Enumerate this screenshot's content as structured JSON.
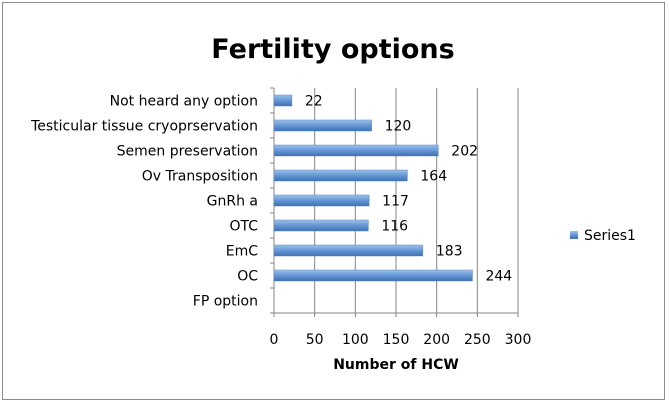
{
  "chart_data": {
    "type": "bar",
    "orientation": "horizontal",
    "title": "Fertility options",
    "xlabel": "Number of HCW",
    "ylabel": "",
    "categories": [
      "FP option",
      "OC",
      "EmC",
      "OTC",
      "GnRh a",
      "Ov Transposition",
      "Semen preservation",
      "Testicular tissue cryoprservation",
      "Not heard any option"
    ],
    "series": [
      {
        "name": "Series1",
        "values": [
          null,
          244,
          183,
          116,
          117,
          164,
          202,
          120,
          22
        ]
      }
    ],
    "data_labels": [
      "",
      "244",
      "183",
      "116",
      "117",
      "164",
      "202",
      "120",
      "22"
    ],
    "xlim": [
      0,
      300
    ],
    "xticks": [
      "0",
      "50",
      "100",
      "150",
      "200",
      "250",
      "300"
    ],
    "grid": "vertical",
    "legend_position": "right",
    "bar_color": "#4f81bd"
  }
}
